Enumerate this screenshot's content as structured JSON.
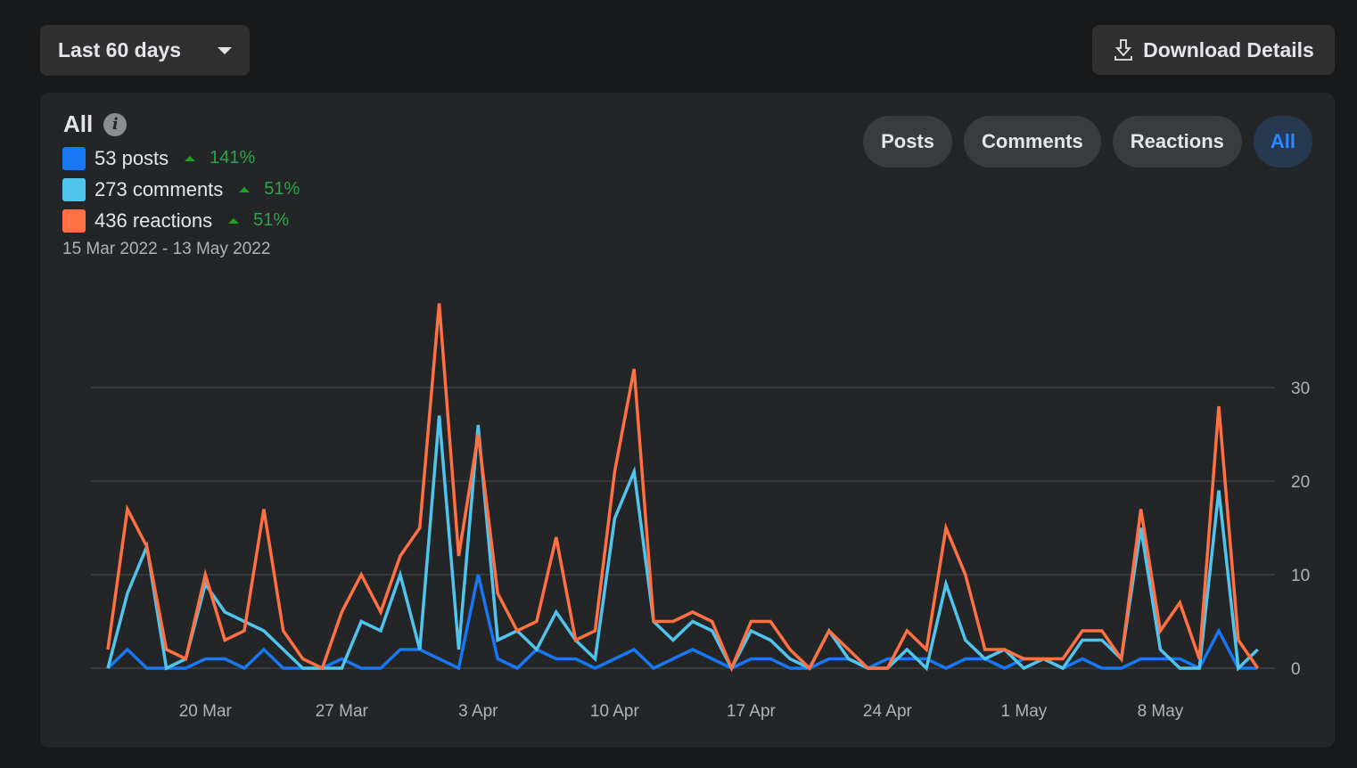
{
  "toolbar": {
    "range_label": "Last 60 days",
    "download_label": "Download Details"
  },
  "summary": {
    "title": "All",
    "items": [
      {
        "label": "53 posts",
        "change": "141%"
      },
      {
        "label": "273 comments",
        "change": "51%"
      },
      {
        "label": "436 reactions",
        "change": "51%"
      }
    ],
    "date_range": "15 Mar 2022 - 13 May 2022"
  },
  "tabs": [
    {
      "label": "Posts",
      "active": false
    },
    {
      "label": "Comments",
      "active": false
    },
    {
      "label": "Reactions",
      "active": false
    },
    {
      "label": "All",
      "active": true
    }
  ],
  "colors": {
    "posts": "#1877f2",
    "comments": "#50c4ed",
    "reactions": "#ff7043",
    "positive": "#31a24c"
  },
  "chart_data": {
    "type": "line",
    "x_start": "15 Mar 2022",
    "days": 60,
    "ylim": [
      0,
      40
    ],
    "yticks": [
      0,
      10,
      20,
      30
    ],
    "xticks": [
      {
        "index": 5,
        "label": "20 Mar"
      },
      {
        "index": 12,
        "label": "27 Mar"
      },
      {
        "index": 19,
        "label": "3 Apr"
      },
      {
        "index": 26,
        "label": "10 Apr"
      },
      {
        "index": 33,
        "label": "17 Apr"
      },
      {
        "index": 40,
        "label": "24 Apr"
      },
      {
        "index": 47,
        "label": "1 May"
      },
      {
        "index": 54,
        "label": "8 May"
      }
    ],
    "grid": true,
    "series": [
      {
        "name": "posts",
        "color": "#1877f2",
        "values": [
          0,
          2,
          0,
          0,
          0,
          1,
          1,
          0,
          2,
          0,
          0,
          0,
          1,
          0,
          0,
          2,
          2,
          1,
          0,
          10,
          1,
          0,
          2,
          1,
          1,
          0,
          1,
          2,
          0,
          1,
          2,
          1,
          0,
          1,
          1,
          0,
          0,
          1,
          1,
          0,
          1,
          1,
          1,
          0,
          1,
          1,
          0,
          1,
          1,
          0,
          1,
          0,
          0,
          1,
          1,
          1,
          0,
          4,
          0,
          0
        ]
      },
      {
        "name": "comments",
        "color": "#50c4ed",
        "values": [
          0,
          8,
          13,
          0,
          1,
          9,
          6,
          5,
          4,
          2,
          0,
          0,
          0,
          5,
          4,
          10,
          2,
          27,
          2,
          26,
          3,
          4,
          2,
          6,
          3,
          1,
          16,
          21,
          5,
          3,
          5,
          4,
          0,
          4,
          3,
          1,
          0,
          4,
          1,
          0,
          0,
          2,
          0,
          9,
          3,
          1,
          2,
          0,
          1,
          0,
          3,
          3,
          1,
          15,
          2,
          0,
          0,
          19,
          0,
          2
        ]
      },
      {
        "name": "reactions",
        "color": "#ff7043",
        "values": [
          2,
          17,
          13,
          2,
          1,
          10,
          3,
          4,
          17,
          4,
          1,
          0,
          6,
          10,
          6,
          12,
          15,
          39,
          12,
          25,
          8,
          4,
          5,
          14,
          3,
          4,
          21,
          32,
          5,
          5,
          6,
          5,
          0,
          5,
          5,
          2,
          0,
          4,
          2,
          0,
          0,
          4,
          2,
          15,
          10,
          2,
          2,
          1,
          1,
          1,
          4,
          4,
          1,
          17,
          4,
          7,
          1,
          28,
          3,
          0
        ]
      }
    ]
  }
}
